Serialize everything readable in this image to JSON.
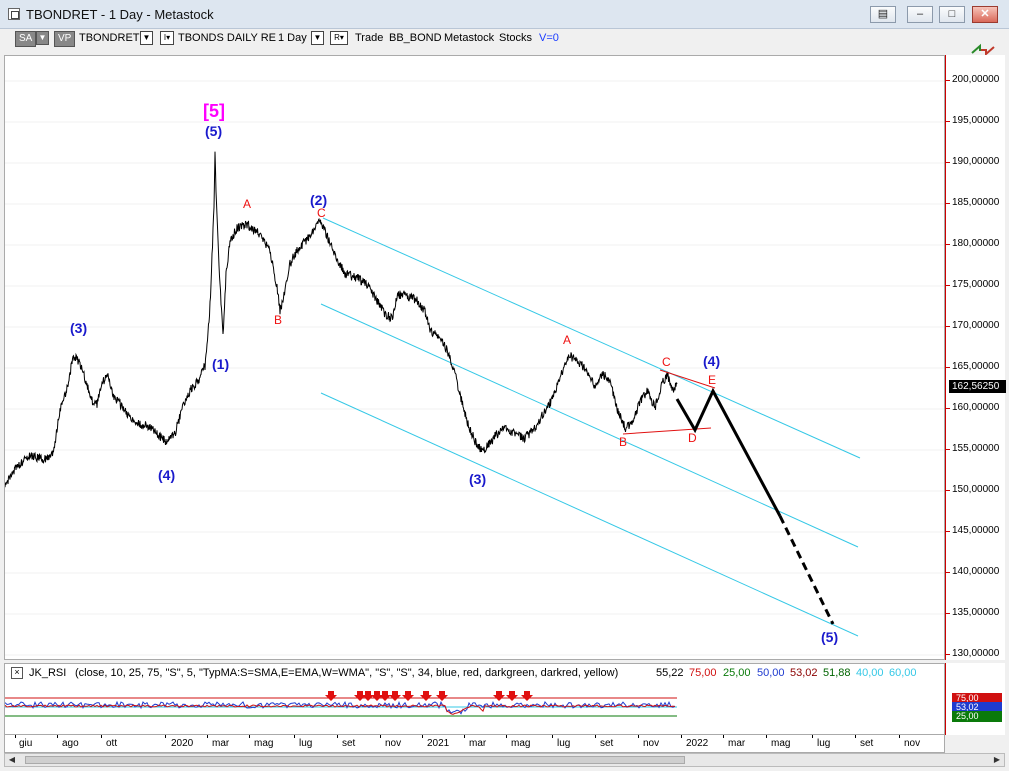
{
  "window": {
    "title": "TBONDRET - 1 Day - Metastock",
    "buttons": [
      "▤",
      "–",
      "□",
      "✕"
    ]
  },
  "toolbar": {
    "sa_label": "SA",
    "vp_label": "VP",
    "symbol": "TBONDRET",
    "dropdown_glyph": "▼",
    "indicator_glyph": "I▾",
    "description": "TBONDS DAILY RE",
    "periodicity": "1 Day",
    "r_button": "R▾",
    "trade": "Trade",
    "template": "BB_BOND",
    "source": "Metastock",
    "stocks": "Stocks",
    "v_value": "V=0"
  },
  "price_axis": {
    "ticks": [
      "200,00000",
      "195,00000",
      "190,00000",
      "185,00000",
      "180,00000",
      "175,00000",
      "170,00000",
      "165,00000",
      "160,00000",
      "155,00000",
      "150,00000",
      "145,00000",
      "140,00000",
      "135,00000",
      "130,00000"
    ],
    "last_price": "162,56250"
  },
  "wave_labels": {
    "big5": "[5]",
    "w5_top": "(5)",
    "w1": "(1)",
    "w3_left": "(3)",
    "w4_left": "(4)",
    "w2": "(2)",
    "w3_mid": "(3)",
    "w4_right": "(4)",
    "w5_target": "(5)",
    "a_top": "A",
    "b_low": "B",
    "c_top": "C",
    "a_mid": "A",
    "c_right": "C",
    "b_right": "B",
    "d_right": "D",
    "e_right": "E"
  },
  "indicator": {
    "close_btn": "×",
    "name": "JK_RSI",
    "params": "(close,  10,  25,  75,  \"S\",  5,  \"TypMA:S=SMA,E=EMA,W=WMA\",  \"S\",  \"S\",  34,  blue,  red,  darkgreen,  darkred,  yellow)",
    "value": "55,22",
    "red_value": "75,00",
    "green_value": "25,00",
    "blue_value": "50,00",
    "darkred_value": "53,02",
    "darkgreen_value": "51,88",
    "cyan_value1": "40,00",
    "cyan_value2": "60,00",
    "axis_tags": [
      "75,00",
      "53,02",
      "25,00"
    ]
  },
  "date_axis": {
    "labels": [
      "giu",
      "ago",
      "ott",
      "2020",
      "mar",
      "mag",
      "lug",
      "set",
      "nov",
      "2021",
      "mar",
      "mag",
      "lug",
      "set",
      "nov",
      "2022",
      "mar",
      "mag",
      "lug",
      "set",
      "nov"
    ]
  },
  "scrollbar": {
    "left": "◀",
    "right": "▶"
  },
  "colors": {
    "price_line": "#000000",
    "channel": "#35c8e6",
    "projection": "#000000",
    "label_blue": "#1a1acc",
    "label_red": "#e11111",
    "label_magenta": "#ff00ff",
    "rsi_blue": "#1f3bcf",
    "rsi_red": "#d01010",
    "rsi_green": "#0a7a0a",
    "arrow_red": "#e01010"
  },
  "icons": {
    "app": "window-icon",
    "toolbar_right": "arrows-exchange-icon"
  }
}
